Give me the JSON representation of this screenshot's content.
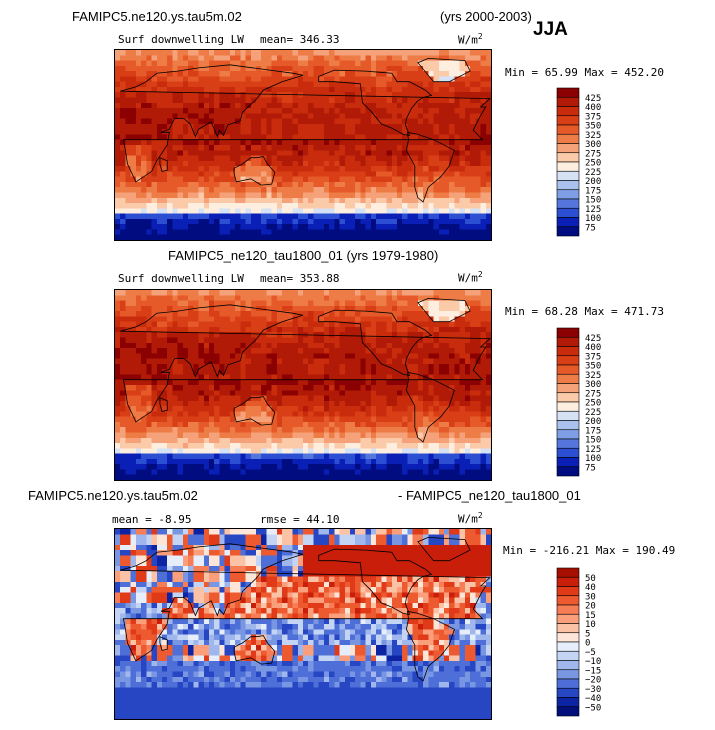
{
  "header": {
    "run_title": "FAMIPC5.ne120.ys.tau5m.02",
    "years": "(yrs 2000-2003)",
    "season": "JJA"
  },
  "panel1": {
    "variable": "Surf downwelling LW",
    "mean_label": "mean= 346.33",
    "units": "W/m",
    "units_sup": "2",
    "minmax": "Min =  65.99 Max = 452.20"
  },
  "panel2": {
    "title": "FAMIPC5_ne120_tau1800_01 (yrs 1979-1980)",
    "variable": "Surf downwelling LW",
    "mean_label": "mean= 353.88",
    "units": "W/m",
    "units_sup": "2",
    "minmax": "Min =  68.28 Max = 471.73"
  },
  "panel3": {
    "title_left": "FAMIPC5.ne120.ys.tau5m.02",
    "title_right": "- FAMIPC5_ne120_tau1800_01",
    "mean_label": "mean =  -8.95",
    "rmse_label": "rmse =  44.10",
    "units": "W/m",
    "units_sup": "2",
    "minmax": "Min = -216.21 Max = 190.49"
  },
  "chart_data": [
    {
      "type": "heatmap",
      "title": "FAMIPC5.ne120.ys.tau5m.02 (yrs 2000-2003) JJA",
      "variable": "Surf downwelling LW",
      "units": "W/m2",
      "mean": 346.33,
      "min": 65.99,
      "max": 452.2,
      "colorbar_levels": [
        425,
        400,
        375,
        350,
        325,
        300,
        275,
        250,
        225,
        200,
        175,
        150,
        125,
        100,
        75
      ],
      "colorbar_colors": [
        "#8b0000",
        "#b01a06",
        "#c92c0c",
        "#d93f16",
        "#e55a28",
        "#ee7c47",
        "#f5a27a",
        "#fbcaa9",
        "#fdeee0",
        "#d5e2f6",
        "#a9c1ee",
        "#7e9ee5",
        "#5577dd",
        "#2c4ed3",
        "#0a1fb5",
        "#000c80"
      ]
    },
    {
      "type": "heatmap",
      "title": "FAMIPC5_ne120_tau1800_01 (yrs 1979-1980)",
      "variable": "Surf downwelling LW",
      "units": "W/m2",
      "mean": 353.88,
      "min": 68.28,
      "max": 471.73,
      "colorbar_levels": [
        425,
        400,
        375,
        350,
        325,
        300,
        275,
        250,
        225,
        200,
        175,
        150,
        125,
        100,
        75
      ],
      "colorbar_colors": [
        "#8b0000",
        "#b01a06",
        "#c92c0c",
        "#d93f16",
        "#e55a28",
        "#ee7c47",
        "#f5a27a",
        "#fbcaa9",
        "#fdeee0",
        "#d5e2f6",
        "#a9c1ee",
        "#7e9ee5",
        "#5577dd",
        "#2c4ed3",
        "#0a1fb5",
        "#000c80"
      ]
    },
    {
      "type": "heatmap",
      "title": "FAMIPC5.ne120.ys.tau5m.02 - FAMIPC5_ne120_tau1800_01",
      "units": "W/m2",
      "mean": -8.95,
      "rmse": 44.1,
      "min": -216.21,
      "max": 190.49,
      "colorbar_levels": [
        50,
        40,
        30,
        20,
        15,
        10,
        5,
        0,
        -5,
        -10,
        -15,
        -20,
        -30,
        -40,
        -50
      ],
      "colorbar_colors": [
        "#a50f00",
        "#c81e0a",
        "#e03a18",
        "#ee5a30",
        "#f67d55",
        "#fa9e7c",
        "#fcc2a6",
        "#fde6d8",
        "#e6eefb",
        "#c4d4f4",
        "#9fb7ec",
        "#7896e2",
        "#4e6fd8",
        "#2646c4",
        "#0c24a4",
        "#020e7a"
      ]
    }
  ]
}
